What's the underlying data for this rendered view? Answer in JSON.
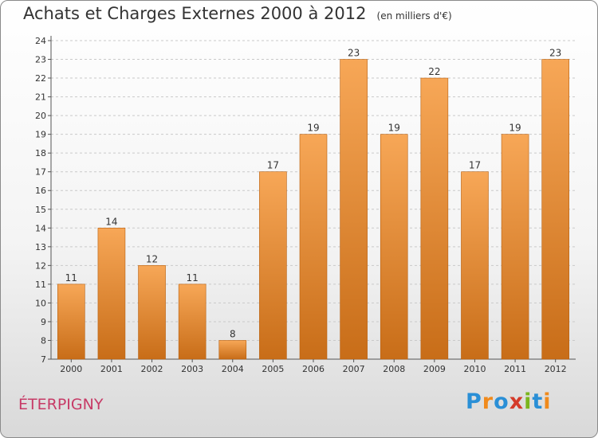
{
  "header": {
    "title": "Achats et Charges Externes 2000 à 2012",
    "unit": "(en milliers d'€)"
  },
  "commune": "ÉTERPIGNY",
  "logo": {
    "letters": [
      "P",
      "r",
      "o",
      "x",
      "i",
      "t",
      "i"
    ],
    "colors": [
      "#2a8fd6",
      "#f08a1c",
      "#2a8fd6",
      "#d43b2a",
      "#7ab51d",
      "#2a8fd6",
      "#f08a1c"
    ]
  },
  "colors": {
    "bar_top": "#f7a757",
    "bar_bottom": "#c86d18",
    "bar_edge": "#b86010",
    "grid": "#c9c9c9"
  },
  "chart_data": {
    "type": "bar",
    "title": "Achats et Charges Externes 2000 à 2012",
    "subtitle": "(en milliers d'€)",
    "categories": [
      "2000",
      "2001",
      "2002",
      "2003",
      "2004",
      "2005",
      "2006",
      "2007",
      "2008",
      "2009",
      "2010",
      "2011",
      "2012"
    ],
    "values": [
      11,
      14,
      12,
      11,
      8,
      17,
      19,
      23,
      19,
      22,
      17,
      19,
      23
    ],
    "ylim": [
      7,
      24
    ],
    "yticks": [
      7,
      8,
      9,
      10,
      11,
      12,
      13,
      14,
      15,
      16,
      17,
      18,
      19,
      20,
      21,
      22,
      23,
      24
    ],
    "grid": "horizontal dashed",
    "legend": "none"
  }
}
